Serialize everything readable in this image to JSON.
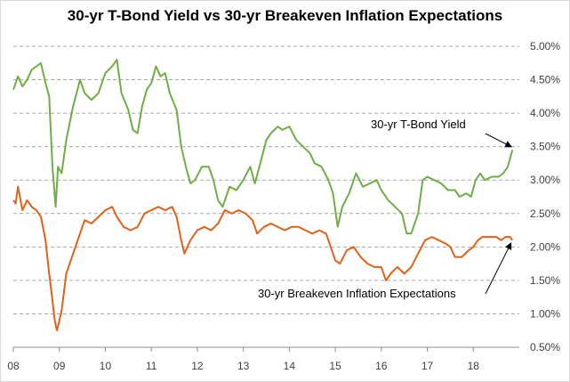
{
  "chart_data": {
    "type": "line",
    "title": "30-yr T-Bond Yield vs 30-yr Breakeven Inflation Expectations",
    "xlabel": "",
    "ylabel": "",
    "x_ticks": [
      "08",
      "09",
      "10",
      "11",
      "12",
      "13",
      "14",
      "15",
      "16",
      "17",
      "18"
    ],
    "y_ticks": [
      "0.50%",
      "1.00%",
      "1.50%",
      "2.00%",
      "2.50%",
      "3.00%",
      "3.50%",
      "4.00%",
      "4.50%",
      "5.00%"
    ],
    "xlim": [
      2008.0,
      2019.0
    ],
    "ylim": [
      0.5,
      5.0
    ],
    "grid": "horizontal dashed",
    "legend": "none",
    "series": [
      {
        "name": "30-yr T-Bond Yield",
        "color": "#70ad47",
        "points": [
          [
            2008.0,
            4.35
          ],
          [
            2008.1,
            4.55
          ],
          [
            2008.2,
            4.4
          ],
          [
            2008.3,
            4.5
          ],
          [
            2008.4,
            4.65
          ],
          [
            2008.5,
            4.7
          ],
          [
            2008.6,
            4.75
          ],
          [
            2008.7,
            4.45
          ],
          [
            2008.78,
            4.25
          ],
          [
            2008.85,
            3.2
          ],
          [
            2008.92,
            2.6
          ],
          [
            2008.97,
            3.2
          ],
          [
            2009.05,
            3.1
          ],
          [
            2009.15,
            3.6
          ],
          [
            2009.3,
            4.1
          ],
          [
            2009.45,
            4.5
          ],
          [
            2009.55,
            4.3
          ],
          [
            2009.7,
            4.2
          ],
          [
            2009.85,
            4.3
          ],
          [
            2010.0,
            4.6
          ],
          [
            2010.15,
            4.7
          ],
          [
            2010.25,
            4.8
          ],
          [
            2010.35,
            4.3
          ],
          [
            2010.5,
            4.05
          ],
          [
            2010.6,
            3.75
          ],
          [
            2010.7,
            3.7
          ],
          [
            2010.8,
            4.1
          ],
          [
            2010.9,
            4.35
          ],
          [
            2011.0,
            4.45
          ],
          [
            2011.1,
            4.7
          ],
          [
            2011.2,
            4.55
          ],
          [
            2011.3,
            4.6
          ],
          [
            2011.4,
            4.3
          ],
          [
            2011.55,
            4.05
          ],
          [
            2011.65,
            3.5
          ],
          [
            2011.75,
            3.2
          ],
          [
            2011.85,
            2.95
          ],
          [
            2011.95,
            3.0
          ],
          [
            2012.1,
            3.2
          ],
          [
            2012.25,
            3.2
          ],
          [
            2012.35,
            3.0
          ],
          [
            2012.45,
            2.7
          ],
          [
            2012.55,
            2.6
          ],
          [
            2012.7,
            2.9
          ],
          [
            2012.85,
            2.85
          ],
          [
            2013.0,
            3.0
          ],
          [
            2013.15,
            3.2
          ],
          [
            2013.25,
            2.95
          ],
          [
            2013.35,
            3.2
          ],
          [
            2013.5,
            3.6
          ],
          [
            2013.6,
            3.7
          ],
          [
            2013.75,
            3.8
          ],
          [
            2013.85,
            3.75
          ],
          [
            2014.0,
            3.8
          ],
          [
            2014.15,
            3.6
          ],
          [
            2014.3,
            3.5
          ],
          [
            2014.45,
            3.4
          ],
          [
            2014.55,
            3.25
          ],
          [
            2014.7,
            3.2
          ],
          [
            2014.85,
            3.0
          ],
          [
            2014.95,
            2.8
          ],
          [
            2015.05,
            2.3
          ],
          [
            2015.15,
            2.6
          ],
          [
            2015.3,
            2.8
          ],
          [
            2015.45,
            3.1
          ],
          [
            2015.6,
            2.9
          ],
          [
            2015.75,
            2.95
          ],
          [
            2015.9,
            3.0
          ],
          [
            2016.0,
            2.85
          ],
          [
            2016.15,
            2.7
          ],
          [
            2016.3,
            2.6
          ],
          [
            2016.45,
            2.5
          ],
          [
            2016.55,
            2.2
          ],
          [
            2016.65,
            2.2
          ],
          [
            2016.8,
            2.5
          ],
          [
            2016.9,
            3.0
          ],
          [
            2017.0,
            3.05
          ],
          [
            2017.15,
            3.0
          ],
          [
            2017.3,
            2.95
          ],
          [
            2017.45,
            2.85
          ],
          [
            2017.6,
            2.85
          ],
          [
            2017.7,
            2.75
          ],
          [
            2017.85,
            2.8
          ],
          [
            2017.95,
            2.75
          ],
          [
            2018.05,
            3.0
          ],
          [
            2018.15,
            3.1
          ],
          [
            2018.25,
            3.0
          ],
          [
            2018.4,
            3.05
          ],
          [
            2018.55,
            3.05
          ],
          [
            2018.65,
            3.1
          ],
          [
            2018.75,
            3.2
          ],
          [
            2018.85,
            3.45
          ]
        ]
      },
      {
        "name": "30-yr Breakeven Inflation Expectations",
        "color": "#e0621a",
        "points": [
          [
            2008.0,
            2.7
          ],
          [
            2008.05,
            2.65
          ],
          [
            2008.1,
            2.9
          ],
          [
            2008.2,
            2.55
          ],
          [
            2008.3,
            2.7
          ],
          [
            2008.4,
            2.6
          ],
          [
            2008.5,
            2.55
          ],
          [
            2008.6,
            2.45
          ],
          [
            2008.7,
            2.1
          ],
          [
            2008.78,
            1.6
          ],
          [
            2008.85,
            1.2
          ],
          [
            2008.9,
            0.9
          ],
          [
            2008.95,
            0.75
          ],
          [
            2009.05,
            1.05
          ],
          [
            2009.15,
            1.6
          ],
          [
            2009.3,
            1.9
          ],
          [
            2009.45,
            2.2
          ],
          [
            2009.55,
            2.4
          ],
          [
            2009.7,
            2.35
          ],
          [
            2009.85,
            2.45
          ],
          [
            2010.0,
            2.55
          ],
          [
            2010.15,
            2.6
          ],
          [
            2010.25,
            2.45
          ],
          [
            2010.4,
            2.3
          ],
          [
            2010.55,
            2.25
          ],
          [
            2010.7,
            2.3
          ],
          [
            2010.85,
            2.5
          ],
          [
            2011.0,
            2.55
          ],
          [
            2011.15,
            2.6
          ],
          [
            2011.3,
            2.55
          ],
          [
            2011.45,
            2.6
          ],
          [
            2011.55,
            2.45
          ],
          [
            2011.65,
            2.1
          ],
          [
            2011.72,
            1.9
          ],
          [
            2011.85,
            2.1
          ],
          [
            2012.0,
            2.25
          ],
          [
            2012.15,
            2.3
          ],
          [
            2012.3,
            2.25
          ],
          [
            2012.45,
            2.35
          ],
          [
            2012.6,
            2.55
          ],
          [
            2012.75,
            2.5
          ],
          [
            2012.9,
            2.55
          ],
          [
            2013.05,
            2.5
          ],
          [
            2013.2,
            2.4
          ],
          [
            2013.3,
            2.2
          ],
          [
            2013.45,
            2.3
          ],
          [
            2013.6,
            2.35
          ],
          [
            2013.75,
            2.3
          ],
          [
            2013.9,
            2.25
          ],
          [
            2014.05,
            2.3
          ],
          [
            2014.2,
            2.3
          ],
          [
            2014.35,
            2.25
          ],
          [
            2014.5,
            2.2
          ],
          [
            2014.65,
            2.25
          ],
          [
            2014.8,
            2.2
          ],
          [
            2014.9,
            2.0
          ],
          [
            2015.0,
            1.8
          ],
          [
            2015.1,
            1.75
          ],
          [
            2015.25,
            1.95
          ],
          [
            2015.4,
            2.0
          ],
          [
            2015.55,
            1.85
          ],
          [
            2015.7,
            1.75
          ],
          [
            2015.85,
            1.7
          ],
          [
            2016.0,
            1.7
          ],
          [
            2016.1,
            1.5
          ],
          [
            2016.2,
            1.6
          ],
          [
            2016.35,
            1.7
          ],
          [
            2016.5,
            1.6
          ],
          [
            2016.65,
            1.7
          ],
          [
            2016.8,
            1.9
          ],
          [
            2016.95,
            2.1
          ],
          [
            2017.1,
            2.15
          ],
          [
            2017.25,
            2.1
          ],
          [
            2017.4,
            2.05
          ],
          [
            2017.5,
            2.0
          ],
          [
            2017.6,
            1.85
          ],
          [
            2017.75,
            1.85
          ],
          [
            2017.9,
            1.95
          ],
          [
            2018.0,
            2.0
          ],
          [
            2018.1,
            2.1
          ],
          [
            2018.2,
            2.15
          ],
          [
            2018.35,
            2.15
          ],
          [
            2018.5,
            2.15
          ],
          [
            2018.6,
            2.1
          ],
          [
            2018.7,
            2.15
          ],
          [
            2018.8,
            2.15
          ],
          [
            2018.85,
            2.1
          ]
        ]
      }
    ],
    "annotations": [
      {
        "text": "30-yr T-Bond Yield",
        "target": [
          2018.85,
          3.45
        ]
      },
      {
        "text": "30-yr Breakeven Inflation Expectations",
        "target": [
          2018.85,
          2.1
        ]
      }
    ]
  }
}
